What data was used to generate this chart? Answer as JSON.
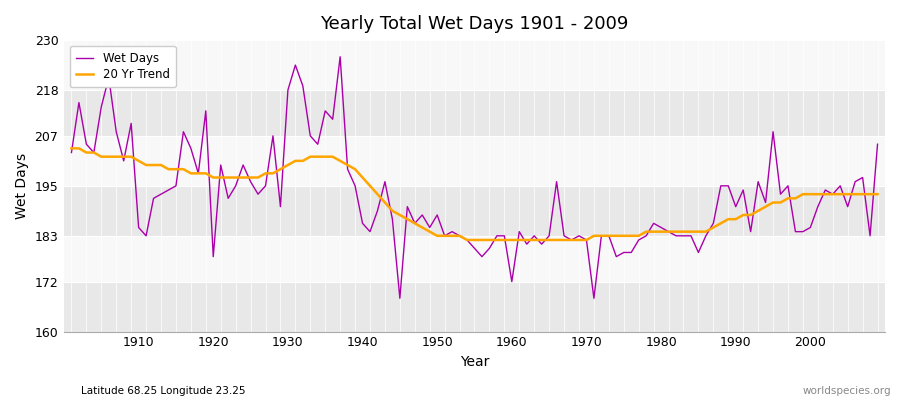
{
  "title": "Yearly Total Wet Days 1901 - 2009",
  "xlabel": "Year",
  "ylabel": "Wet Days",
  "subtitle_left": "Latitude 68.25 Longitude 23.25",
  "subtitle_right": "worldspecies.org",
  "ylim": [
    160,
    230
  ],
  "yticks": [
    160,
    172,
    183,
    195,
    207,
    218,
    230
  ],
  "xticks": [
    1910,
    1920,
    1930,
    1940,
    1950,
    1960,
    1970,
    1980,
    1990,
    2000
  ],
  "xlim": [
    1900,
    2010
  ],
  "line_color": "#aa00aa",
  "trend_color": "#FFA500",
  "band_colors": [
    "#e8e8e8",
    "#f8f8f8"
  ],
  "years": [
    1901,
    1902,
    1903,
    1904,
    1905,
    1906,
    1907,
    1908,
    1909,
    1910,
    1911,
    1912,
    1913,
    1914,
    1915,
    1916,
    1917,
    1918,
    1919,
    1920,
    1921,
    1922,
    1923,
    1924,
    1925,
    1926,
    1927,
    1928,
    1929,
    1930,
    1931,
    1932,
    1933,
    1934,
    1935,
    1936,
    1937,
    1938,
    1939,
    1940,
    1941,
    1942,
    1943,
    1944,
    1945,
    1946,
    1947,
    1948,
    1949,
    1950,
    1951,
    1952,
    1953,
    1954,
    1955,
    1956,
    1957,
    1958,
    1959,
    1960,
    1961,
    1962,
    1963,
    1964,
    1965,
    1966,
    1967,
    1968,
    1969,
    1970,
    1971,
    1972,
    1973,
    1974,
    1975,
    1976,
    1977,
    1978,
    1979,
    1980,
    1981,
    1982,
    1983,
    1984,
    1985,
    1986,
    1987,
    1988,
    1989,
    1990,
    1991,
    1992,
    1993,
    1994,
    1995,
    1996,
    1997,
    1998,
    1999,
    2000,
    2001,
    2002,
    2003,
    2004,
    2005,
    2006,
    2007,
    2008,
    2009
  ],
  "wet_days": [
    203,
    215,
    205,
    203,
    214,
    221,
    208,
    201,
    210,
    185,
    183,
    192,
    193,
    194,
    195,
    208,
    204,
    198,
    213,
    178,
    200,
    192,
    195,
    200,
    196,
    193,
    195,
    207,
    190,
    218,
    224,
    219,
    207,
    205,
    213,
    211,
    226,
    199,
    195,
    186,
    184,
    189,
    196,
    187,
    168,
    190,
    186,
    188,
    185,
    188,
    183,
    184,
    183,
    182,
    180,
    178,
    180,
    183,
    183,
    172,
    184,
    181,
    183,
    181,
    183,
    196,
    183,
    182,
    183,
    182,
    168,
    183,
    183,
    178,
    179,
    179,
    182,
    183,
    186,
    185,
    184,
    183,
    183,
    183,
    179,
    183,
    186,
    195,
    195,
    190,
    194,
    184,
    196,
    191,
    208,
    193,
    195,
    184,
    184,
    185,
    190,
    194,
    193,
    195,
    190,
    196,
    197,
    183,
    205
  ],
  "trend_values": [
    204,
    204,
    203,
    203,
    202,
    202,
    202,
    202,
    202,
    201,
    200,
    200,
    200,
    199,
    199,
    199,
    198,
    198,
    198,
    197,
    197,
    197,
    197,
    197,
    197,
    197,
    198,
    198,
    199,
    200,
    201,
    201,
    202,
    202,
    202,
    202,
    201,
    200,
    199,
    197,
    195,
    193,
    191,
    189,
    188,
    187,
    186,
    185,
    184,
    183,
    183,
    183,
    183,
    182,
    182,
    182,
    182,
    182,
    182,
    182,
    182,
    182,
    182,
    182,
    182,
    182,
    182,
    182,
    182,
    182,
    183,
    183,
    183,
    183,
    183,
    183,
    183,
    184,
    184,
    184,
    184,
    184,
    184,
    184,
    184,
    184,
    185,
    186,
    187,
    187,
    188,
    188,
    189,
    190,
    191,
    191,
    192,
    192,
    193,
    193,
    193,
    193,
    193,
    193,
    193,
    193,
    193,
    193,
    193
  ]
}
